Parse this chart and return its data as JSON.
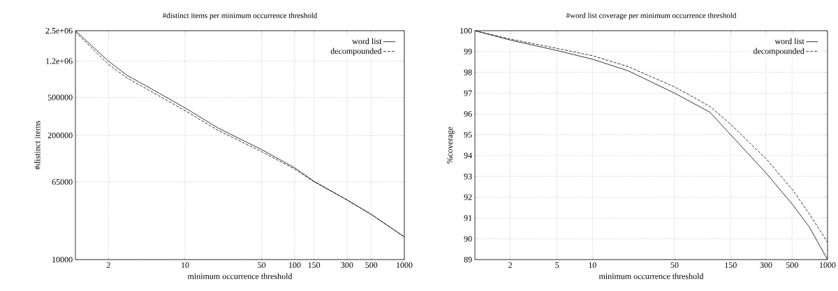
{
  "chart_data": [
    {
      "type": "line",
      "title": "#distinct items per minimum occurrence threshold",
      "xlabel": "minimum occurrence threshold",
      "ylabel": "#distinct items",
      "log": "xy",
      "grid": true,
      "legend": "top right",
      "xlim": [
        1,
        1000
      ],
      "ylim": [
        10000,
        2500000
      ],
      "xticks": [
        2,
        10,
        50,
        100,
        150,
        300,
        500,
        1000
      ],
      "yticks": [
        10000,
        65000,
        200000,
        500000,
        {
          "value": 1200000,
          "label": "1.2e+06"
        },
        {
          "value": 2500000,
          "label": "2.5e+06"
        }
      ],
      "x": [
        1,
        2,
        3,
        5,
        10,
        20,
        50,
        100,
        150,
        300,
        500,
        1000
      ],
      "series": [
        {
          "name": "word list",
          "color": "#000000",
          "line_style": "solid",
          "values": [
            2500000,
            1200000,
            843000,
            610000,
            388000,
            239000,
            142000,
            91500,
            66200,
            42100,
            29700,
            17300
          ]
        },
        {
          "name": "decompounded",
          "color": "#000000",
          "line_style": "dashed",
          "values": [
            2420000,
            1110000,
            790000,
            571000,
            363000,
            226000,
            135000,
            88600,
            65300,
            42300,
            29700,
            17300
          ]
        }
      ]
    },
    {
      "type": "line",
      "title": "#word list coverage per minimum occurrence threshold",
      "xlabel": "minimum occurrence threshold",
      "ylabel": "%coverage",
      "log": "x",
      "grid": true,
      "legend": "top right",
      "xlim": [
        1,
        1000
      ],
      "ylim": [
        89,
        100
      ],
      "xticks": [
        2,
        5,
        10,
        50,
        150,
        300,
        500,
        1000
      ],
      "yticks": [
        89,
        90,
        91,
        92,
        93,
        94,
        95,
        96,
        97,
        98,
        99,
        100
      ],
      "x": [
        1,
        2,
        5,
        10,
        20,
        50,
        100,
        150,
        300,
        500,
        700,
        1000
      ],
      "series": [
        {
          "name": "word list",
          "color": "#000000",
          "line_style": "solid",
          "values": [
            100,
            99.55,
            99.05,
            98.63,
            98.08,
            97.0,
            96.08,
            95.0,
            93.16,
            91.67,
            90.57,
            89.0
          ]
        },
        {
          "name": "decompounded",
          "color": "#000000",
          "line_style": "dashed",
          "values": [
            100,
            99.6,
            99.15,
            98.8,
            98.28,
            97.3,
            96.36,
            95.5,
            93.85,
            92.38,
            91.2,
            89.83
          ]
        }
      ]
    }
  ]
}
